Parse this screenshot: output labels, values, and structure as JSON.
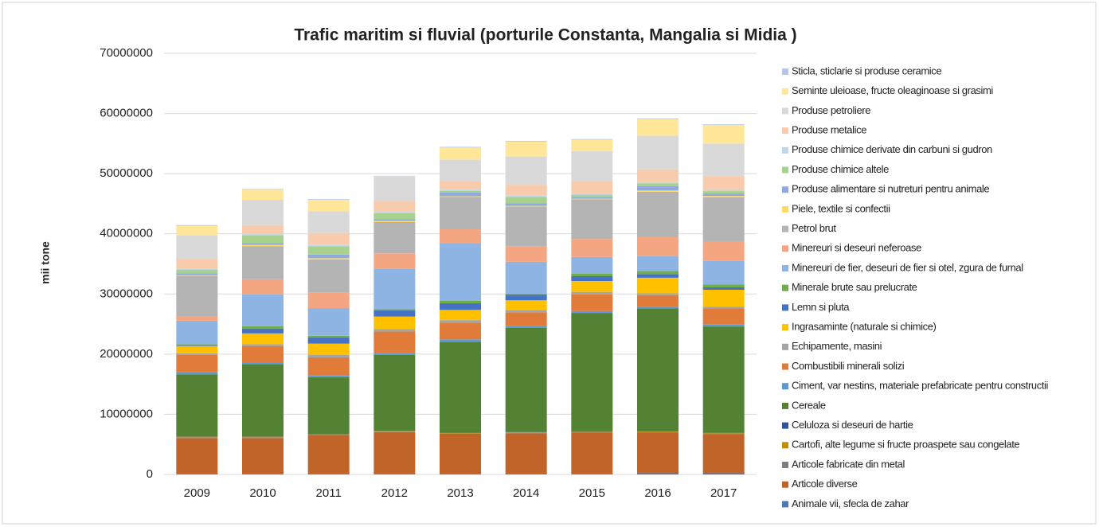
{
  "chart_data": {
    "type": "stacked_bar",
    "title": "Trafic maritim si fluvial (porturile Constanta, Mangalia si Midia )",
    "y_label": "mii tone",
    "categories": [
      "2009",
      "2010",
      "2011",
      "2012",
      "2013",
      "2014",
      "2015",
      "2016",
      "2017"
    ],
    "ylim": [
      0,
      70000000
    ],
    "yticks": [
      0,
      10000000,
      20000000,
      30000000,
      40000000,
      50000000,
      60000000,
      70000000
    ],
    "grid": true,
    "legend": "right",
    "series": [
      {
        "name": "Animale vii, sfecla de zahar",
        "color": "#4a7ab5",
        "values": [
          50000,
          50000,
          50000,
          50000,
          50000,
          50000,
          50000,
          200000,
          200000
        ]
      },
      {
        "name": "Articole diverse",
        "color": "#c0642a",
        "values": [
          6000000,
          6000000,
          6500000,
          7000000,
          6700000,
          6800000,
          6900000,
          6800000,
          6500000
        ]
      },
      {
        "name": "Articole fabricate din metal",
        "color": "#7f7f7f",
        "values": [
          50000,
          50000,
          50000,
          50000,
          50000,
          50000,
          50000,
          50000,
          50000
        ]
      },
      {
        "name": "Cartofi, alte legume si fructe proaspete sau congelate",
        "color": "#bf9000",
        "values": [
          200000,
          200000,
          100000,
          100000,
          100000,
          100000,
          100000,
          100000,
          100000
        ]
      },
      {
        "name": "Celuloza si deseuri de hartie",
        "color": "#2f5597",
        "values": [
          50000,
          50000,
          50000,
          50000,
          50000,
          50000,
          50000,
          50000,
          50000
        ]
      },
      {
        "name": "Cereale",
        "color": "#548235",
        "values": [
          10300000,
          12000000,
          9400000,
          12600000,
          15100000,
          17300000,
          19700000,
          20400000,
          17700000
        ]
      },
      {
        "name": "Ciment, var nestins, materiale prefabricate pentru constructii",
        "color": "#5b9bd5",
        "values": [
          300000,
          300000,
          300000,
          300000,
          400000,
          300000,
          300000,
          300000,
          300000
        ]
      },
      {
        "name": "Combustibili minerali solizi",
        "color": "#e07b39",
        "values": [
          2900000,
          2700000,
          3000000,
          3600000,
          2800000,
          2300000,
          2800000,
          1900000,
          2700000
        ]
      },
      {
        "name": "Echipamente, masini",
        "color": "#a5a5a5",
        "values": [
          300000,
          300000,
          400000,
          400000,
          400000,
          400000,
          400000,
          300000,
          300000
        ]
      },
      {
        "name": "Ingrasaminte (naturale si chimice)",
        "color": "#ffc000",
        "values": [
          1200000,
          1800000,
          1900000,
          2100000,
          1700000,
          1600000,
          1800000,
          2600000,
          2800000
        ]
      },
      {
        "name": "Lemn si pluta",
        "color": "#4472c4",
        "values": [
          100000,
          800000,
          1000000,
          1000000,
          1100000,
          900000,
          800000,
          600000,
          400000
        ]
      },
      {
        "name": "Minerale brute sau prelucrate",
        "color": "#70ad47",
        "values": [
          200000,
          400000,
          300000,
          200000,
          400000,
          200000,
          400000,
          500000,
          500000
        ]
      },
      {
        "name": "Minereuri de fier, deseuri de fier si otel, zgura de furnal",
        "color": "#8db4e2",
        "values": [
          3900000,
          5300000,
          4600000,
          6700000,
          9600000,
          5300000,
          2800000,
          2500000,
          3900000
        ]
      },
      {
        "name": "Minereuri si deseuri neferoase",
        "color": "#f4a582",
        "values": [
          700000,
          2500000,
          2600000,
          2600000,
          2300000,
          2600000,
          3000000,
          3200000,
          3200000
        ]
      },
      {
        "name": "Petrol brut",
        "color": "#b4b4b4",
        "values": [
          6800000,
          5500000,
          5500000,
          5200000,
          5400000,
          6600000,
          6600000,
          7500000,
          7400000
        ]
      },
      {
        "name": "Piele, textile si confectii",
        "color": "#ffd966",
        "values": [
          100000,
          200000,
          200000,
          200000,
          100000,
          100000,
          100000,
          200000,
          200000
        ]
      },
      {
        "name": "Produse alimentare si nutreturi pentru animale",
        "color": "#8faadc",
        "values": [
          300000,
          300000,
          600000,
          300000,
          600000,
          400000,
          200000,
          700000,
          400000
        ]
      },
      {
        "name": "Produse chimice altele",
        "color": "#a9d18e",
        "values": [
          600000,
          1300000,
          1400000,
          1000000,
          300000,
          1100000,
          400000,
          500000,
          400000
        ]
      },
      {
        "name": "Produse chimice derivate din carbuni si gudron",
        "color": "#bdd7ee",
        "values": [
          100000,
          200000,
          200000,
          200000,
          200000,
          200000,
          200000,
          200000,
          200000
        ]
      },
      {
        "name": "Produse metalice",
        "color": "#f8cbad",
        "values": [
          1700000,
          1500000,
          2000000,
          1800000,
          1400000,
          1800000,
          2100000,
          2100000,
          2200000
        ]
      },
      {
        "name": "Produse petroliere",
        "color": "#d9d9d9",
        "values": [
          3900000,
          4200000,
          3600000,
          4100000,
          3600000,
          4700000,
          5000000,
          5600000,
          5500000
        ]
      },
      {
        "name": "Seminte uleioase, fructe oleaginoase si grasimi",
        "color": "#ffe699",
        "values": [
          1600000,
          1700000,
          1900000,
          50000,
          2000000,
          2500000,
          1900000,
          2800000,
          3100000
        ]
      },
      {
        "name": "Sticla, sticlarie si produse ceramice",
        "color": "#b4c7e7",
        "values": [
          100000,
          100000,
          100000,
          50000,
          100000,
          100000,
          100000,
          100000,
          100000
        ]
      }
    ]
  }
}
